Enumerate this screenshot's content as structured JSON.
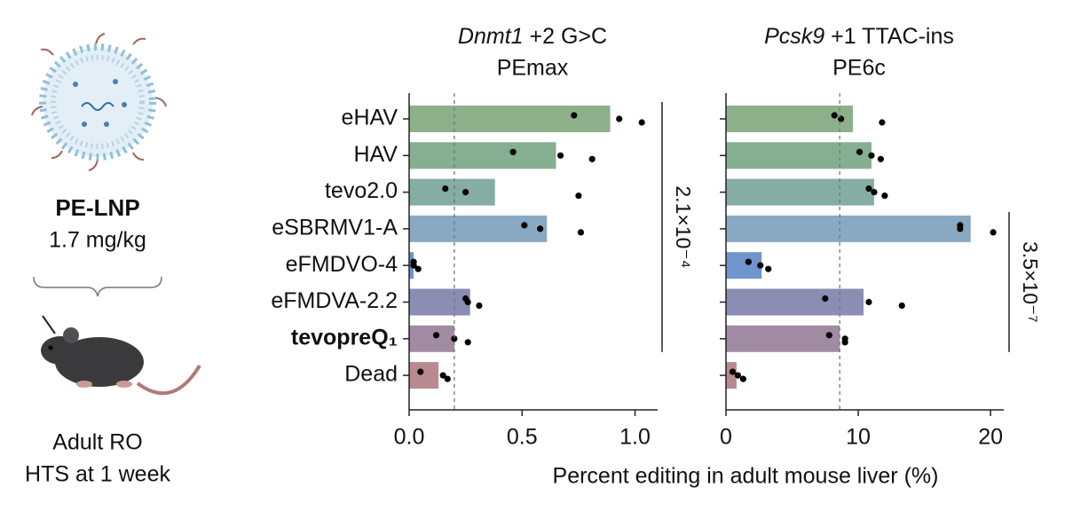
{
  "illustration": {
    "label": "PE-LNP",
    "dose": "1.7 mg/kg",
    "model": "Adult RO",
    "readout": "HTS at 1 week"
  },
  "xlabel": "Percent editing in adult mouse liver (%)",
  "chart_data": [
    {
      "type": "bar",
      "title": {
        "gene": "Dnmt1",
        "edit": "+2 G>C"
      },
      "subtitle": "PEmax",
      "categories": [
        "eHAV",
        "HAV",
        "tevo2.0",
        "eSBRMV1-A",
        "eFMDVO-4",
        "eFMDVA-2.2",
        "tevopreQ₁",
        "Dead"
      ],
      "colors": [
        "#8db08a",
        "#86ae90",
        "#85ada3",
        "#89a9c2",
        "#6f95cc",
        "#8b8db3",
        "#a18ba2",
        "#b98b91"
      ],
      "values": [
        0.89,
        0.65,
        0.38,
        0.61,
        0.02,
        0.27,
        0.2,
        0.13
      ],
      "points": [
        [
          0.73,
          0.93,
          1.03
        ],
        [
          0.46,
          0.67,
          0.81
        ],
        [
          0.16,
          0.25,
          0.75
        ],
        [
          0.51,
          0.58,
          0.76
        ],
        [
          0.02,
          0.02,
          0.04
        ],
        [
          0.25,
          0.26,
          0.31
        ],
        [
          0.12,
          0.2,
          0.26
        ],
        [
          0.05,
          0.15,
          0.17
        ]
      ],
      "reference_line": 0.2,
      "xlim": [
        0,
        1.1
      ],
      "xticks": [
        {
          "value": 0,
          "label": "0.0"
        },
        0.5,
        {
          "value": 1,
          "label": "1.0"
        }
      ],
      "annotation": "2.1×10⁻⁴"
    },
    {
      "type": "bar",
      "title": {
        "gene": "Pcsk9",
        "edit": "+1 TTAC-ins"
      },
      "subtitle": "PE6c",
      "colors": [
        "#8db08a",
        "#86ae90",
        "#85ada3",
        "#89a9c2",
        "#6f95cc",
        "#8b8db3",
        "#a18ba2",
        "#b98b91"
      ],
      "values": [
        9.6,
        11.0,
        11.2,
        18.5,
        2.7,
        10.4,
        8.6,
        0.8
      ],
      "points": [
        [
          8.2,
          8.7,
          11.8
        ],
        [
          10.1,
          11.0,
          11.7
        ],
        [
          10.8,
          11.2,
          12.0
        ],
        [
          17.7,
          17.7,
          20.2
        ],
        [
          1.7,
          2.6,
          3.2
        ],
        [
          7.5,
          10.8,
          13.3
        ],
        [
          7.8,
          9.0,
          9.0
        ],
        [
          0.5,
          0.9,
          1.3
        ]
      ],
      "reference_line": 8.6,
      "xlim": [
        0,
        21
      ],
      "xticks": [
        0,
        10,
        20
      ],
      "annotation": "3.5×10⁻⁷"
    }
  ]
}
